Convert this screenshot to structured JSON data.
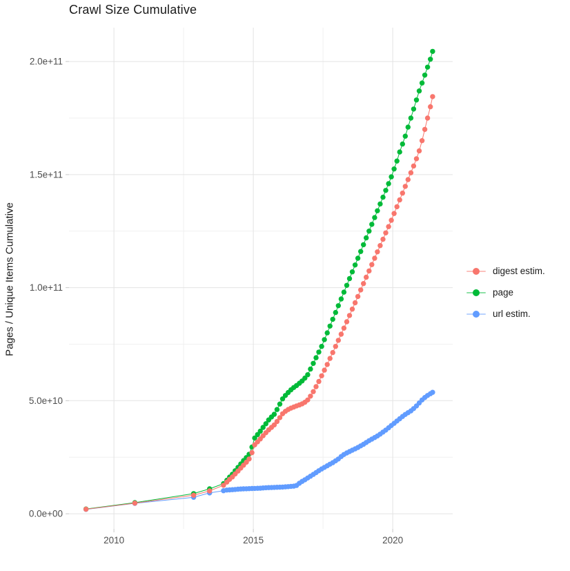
{
  "chart_data": {
    "type": "scatter",
    "title": "Crawl Size Cumulative",
    "xlabel": "",
    "ylabel": "Pages / Unique Items Cumulative",
    "units_note": "y values stored in billions (1e9 items)",
    "grid": true,
    "legend_position": "right",
    "xlim": [
      2008.39,
      2022.15
    ],
    "ylim_billions": [
      -6.7,
      215.0
    ],
    "x_major_ticks": [
      {
        "value": 2010,
        "label": "2010"
      },
      {
        "value": 2015,
        "label": "2015"
      },
      {
        "value": 2020,
        "label": "2020"
      }
    ],
    "x_minor_ticks": [
      2012.5,
      2017.5
    ],
    "y_major_ticks": [
      {
        "value_billions": 0,
        "label": "0.0e+00"
      },
      {
        "value_billions": 50,
        "label": "5.0e+10"
      },
      {
        "value_billions": 100,
        "label": "1.0e+11"
      },
      {
        "value_billions": 150,
        "label": "1.5e+11"
      },
      {
        "value_billions": 200,
        "label": "2.0e+11"
      }
    ],
    "y_minor_ticks_billions": [
      25,
      75,
      125,
      175
    ],
    "style": {
      "grid_major_color": "#e3e3e3",
      "grid_minor_color": "#f0f0f0",
      "tick_color": "#c8c8c8",
      "tick_label_color": "#4d4d4d"
    },
    "series": [
      {
        "name": "digest estim.",
        "color": "#F8766D",
        "points_year_billions": [
          [
            2009.0,
            2.0
          ],
          [
            2010.75,
            4.7
          ],
          [
            2012.86,
            8.2
          ],
          [
            2013.43,
            10.1
          ],
          [
            2013.93,
            12.6
          ],
          [
            2014.05,
            14.0
          ],
          [
            2014.15,
            15.2
          ],
          [
            2014.25,
            16.3
          ],
          [
            2014.35,
            17.6
          ],
          [
            2014.45,
            18.9
          ],
          [
            2014.55,
            20.2
          ],
          [
            2014.65,
            21.5
          ],
          [
            2014.75,
            22.8
          ],
          [
            2014.85,
            24.2
          ],
          [
            2014.95,
            27.0
          ],
          [
            2015.05,
            30.5
          ],
          [
            2015.15,
            31.8
          ],
          [
            2015.25,
            33.1
          ],
          [
            2015.35,
            34.5
          ],
          [
            2015.45,
            35.8
          ],
          [
            2015.55,
            37.1
          ],
          [
            2015.65,
            38.2
          ],
          [
            2015.75,
            39.3
          ],
          [
            2015.85,
            40.8
          ],
          [
            2015.95,
            42.5
          ],
          [
            2016.05,
            44.2
          ],
          [
            2016.15,
            45.3
          ],
          [
            2016.25,
            46.1
          ],
          [
            2016.35,
            46.7
          ],
          [
            2016.45,
            47.2
          ],
          [
            2016.55,
            47.7
          ],
          [
            2016.65,
            48.1
          ],
          [
            2016.75,
            48.6
          ],
          [
            2016.85,
            49.3
          ],
          [
            2016.95,
            50.3
          ],
          [
            2017.05,
            52.0
          ],
          [
            2017.15,
            54.0
          ],
          [
            2017.25,
            56.2
          ],
          [
            2017.35,
            58.5
          ],
          [
            2017.45,
            61.0
          ],
          [
            2017.55,
            63.5
          ],
          [
            2017.65,
            66.0
          ],
          [
            2017.75,
            68.7
          ],
          [
            2017.85,
            71.3
          ],
          [
            2017.95,
            74.0
          ],
          [
            2018.05,
            76.7
          ],
          [
            2018.15,
            79.4
          ],
          [
            2018.25,
            82.1
          ],
          [
            2018.35,
            84.9
          ],
          [
            2018.45,
            87.7
          ],
          [
            2018.55,
            90.5
          ],
          [
            2018.65,
            93.3
          ],
          [
            2018.75,
            96.1
          ],
          [
            2018.85,
            99.0
          ],
          [
            2018.95,
            101.8
          ],
          [
            2019.05,
            104.6
          ],
          [
            2019.15,
            107.4
          ],
          [
            2019.25,
            110.2
          ],
          [
            2019.35,
            113.0
          ],
          [
            2019.45,
            115.8
          ],
          [
            2019.55,
            118.6
          ],
          [
            2019.65,
            121.4
          ],
          [
            2019.75,
            124.2
          ],
          [
            2019.85,
            127.0
          ],
          [
            2019.95,
            129.8
          ],
          [
            2020.05,
            132.8
          ],
          [
            2020.15,
            135.8
          ],
          [
            2020.25,
            138.8
          ],
          [
            2020.35,
            141.8
          ],
          [
            2020.45,
            144.8
          ],
          [
            2020.55,
            147.8
          ],
          [
            2020.65,
            150.8
          ],
          [
            2020.75,
            153.8
          ],
          [
            2020.85,
            157.0
          ],
          [
            2020.95,
            160.5
          ],
          [
            2021.05,
            165.0
          ],
          [
            2021.15,
            170.0
          ],
          [
            2021.25,
            175.0
          ],
          [
            2021.35,
            180.0
          ],
          [
            2021.43,
            184.5
          ]
        ]
      },
      {
        "name": "page",
        "color": "#00BA38",
        "points_year_billions": [
          [
            2009.0,
            2.1
          ],
          [
            2010.75,
            4.9
          ],
          [
            2012.86,
            8.9
          ],
          [
            2013.43,
            11.0
          ],
          [
            2013.93,
            13.3
          ],
          [
            2014.05,
            14.8
          ],
          [
            2014.15,
            16.2
          ],
          [
            2014.25,
            17.5
          ],
          [
            2014.35,
            19.0
          ],
          [
            2014.45,
            20.5
          ],
          [
            2014.55,
            22.0
          ],
          [
            2014.65,
            23.5
          ],
          [
            2014.75,
            24.8
          ],
          [
            2014.85,
            26.3
          ],
          [
            2014.95,
            29.5
          ],
          [
            2015.05,
            33.5
          ],
          [
            2015.15,
            35.0
          ],
          [
            2015.25,
            36.5
          ],
          [
            2015.35,
            38.2
          ],
          [
            2015.45,
            39.8
          ],
          [
            2015.55,
            41.5
          ],
          [
            2015.65,
            42.8
          ],
          [
            2015.75,
            44.0
          ],
          [
            2015.85,
            46.1
          ],
          [
            2015.95,
            48.5
          ],
          [
            2016.05,
            50.8
          ],
          [
            2016.15,
            52.3
          ],
          [
            2016.25,
            53.6
          ],
          [
            2016.35,
            54.8
          ],
          [
            2016.45,
            55.8
          ],
          [
            2016.55,
            56.7
          ],
          [
            2016.65,
            57.7
          ],
          [
            2016.75,
            58.7
          ],
          [
            2016.85,
            60.0
          ],
          [
            2016.95,
            61.5
          ],
          [
            2017.05,
            64.0
          ],
          [
            2017.15,
            66.5
          ],
          [
            2017.25,
            69.0
          ],
          [
            2017.35,
            71.5
          ],
          [
            2017.45,
            74.0
          ],
          [
            2017.55,
            77.0
          ],
          [
            2017.65,
            80.0
          ],
          [
            2017.75,
            83.0
          ],
          [
            2017.85,
            86.0
          ],
          [
            2017.95,
            89.0
          ],
          [
            2018.05,
            92.0
          ],
          [
            2018.15,
            95.0
          ],
          [
            2018.25,
            98.0
          ],
          [
            2018.35,
            101.0
          ],
          [
            2018.45,
            104.0
          ],
          [
            2018.55,
            107.0
          ],
          [
            2018.65,
            110.0
          ],
          [
            2018.75,
            113.0
          ],
          [
            2018.85,
            116.0
          ],
          [
            2018.95,
            119.0
          ],
          [
            2019.05,
            122.0
          ],
          [
            2019.15,
            125.0
          ],
          [
            2019.25,
            128.0
          ],
          [
            2019.35,
            131.0
          ],
          [
            2019.45,
            134.0
          ],
          [
            2019.55,
            137.0
          ],
          [
            2019.65,
            140.0
          ],
          [
            2019.75,
            143.0
          ],
          [
            2019.85,
            146.0
          ],
          [
            2019.95,
            149.0
          ],
          [
            2020.05,
            152.5
          ],
          [
            2020.15,
            156.0
          ],
          [
            2020.25,
            160.0
          ],
          [
            2020.35,
            163.5
          ],
          [
            2020.45,
            167.0
          ],
          [
            2020.55,
            171.0
          ],
          [
            2020.65,
            175.0
          ],
          [
            2020.75,
            179.0
          ],
          [
            2020.85,
            183.0
          ],
          [
            2020.95,
            187.0
          ],
          [
            2021.05,
            190.5
          ],
          [
            2021.15,
            194.0
          ],
          [
            2021.25,
            197.5
          ],
          [
            2021.35,
            201.0
          ],
          [
            2021.43,
            204.5
          ]
        ]
      },
      {
        "name": "url estim.",
        "color": "#619CFF",
        "points_year_billions": [
          [
            2009.0,
            1.9
          ],
          [
            2010.75,
            4.6
          ],
          [
            2012.86,
            7.3
          ],
          [
            2013.43,
            9.2
          ],
          [
            2013.93,
            10.2
          ],
          [
            2014.05,
            10.45
          ],
          [
            2014.15,
            10.55
          ],
          [
            2014.25,
            10.65
          ],
          [
            2014.35,
            10.75
          ],
          [
            2014.45,
            10.85
          ],
          [
            2014.55,
            10.95
          ],
          [
            2014.65,
            11.0
          ],
          [
            2014.75,
            11.05
          ],
          [
            2014.85,
            11.1
          ],
          [
            2014.95,
            11.15
          ],
          [
            2015.05,
            11.2
          ],
          [
            2015.15,
            11.25
          ],
          [
            2015.25,
            11.3
          ],
          [
            2015.35,
            11.4
          ],
          [
            2015.45,
            11.5
          ],
          [
            2015.55,
            11.55
          ],
          [
            2015.65,
            11.6
          ],
          [
            2015.75,
            11.65
          ],
          [
            2015.85,
            11.7
          ],
          [
            2015.95,
            11.75
          ],
          [
            2016.05,
            11.8
          ],
          [
            2016.15,
            11.9
          ],
          [
            2016.25,
            12.0
          ],
          [
            2016.35,
            12.1
          ],
          [
            2016.45,
            12.2
          ],
          [
            2016.55,
            12.5
          ],
          [
            2016.65,
            13.5
          ],
          [
            2016.75,
            14.3
          ],
          [
            2016.85,
            15.0
          ],
          [
            2016.95,
            15.8
          ],
          [
            2017.05,
            16.6
          ],
          [
            2017.15,
            17.4
          ],
          [
            2017.25,
            18.2
          ],
          [
            2017.35,
            19.0
          ],
          [
            2017.45,
            19.8
          ],
          [
            2017.55,
            20.5
          ],
          [
            2017.65,
            21.2
          ],
          [
            2017.75,
            21.9
          ],
          [
            2017.85,
            22.6
          ],
          [
            2017.95,
            23.4
          ],
          [
            2018.05,
            24.2
          ],
          [
            2018.15,
            25.3
          ],
          [
            2018.25,
            26.2
          ],
          [
            2018.35,
            26.9
          ],
          [
            2018.45,
            27.5
          ],
          [
            2018.55,
            28.1
          ],
          [
            2018.65,
            28.7
          ],
          [
            2018.75,
            29.3
          ],
          [
            2018.85,
            30.0
          ],
          [
            2018.95,
            30.7
          ],
          [
            2019.05,
            31.5
          ],
          [
            2019.15,
            32.3
          ],
          [
            2019.25,
            33.0
          ],
          [
            2019.35,
            33.7
          ],
          [
            2019.45,
            34.4
          ],
          [
            2019.55,
            35.2
          ],
          [
            2019.65,
            36.1
          ],
          [
            2019.75,
            37.0
          ],
          [
            2019.85,
            38.0
          ],
          [
            2019.95,
            39.0
          ],
          [
            2020.05,
            40.0
          ],
          [
            2020.15,
            41.0
          ],
          [
            2020.25,
            42.0
          ],
          [
            2020.35,
            43.0
          ],
          [
            2020.45,
            43.9
          ],
          [
            2020.55,
            44.7
          ],
          [
            2020.65,
            45.5
          ],
          [
            2020.75,
            46.5
          ],
          [
            2020.85,
            47.7
          ],
          [
            2020.95,
            49.0
          ],
          [
            2021.05,
            50.3
          ],
          [
            2021.15,
            51.4
          ],
          [
            2021.25,
            52.3
          ],
          [
            2021.35,
            53.1
          ],
          [
            2021.43,
            53.7
          ]
        ]
      }
    ]
  }
}
